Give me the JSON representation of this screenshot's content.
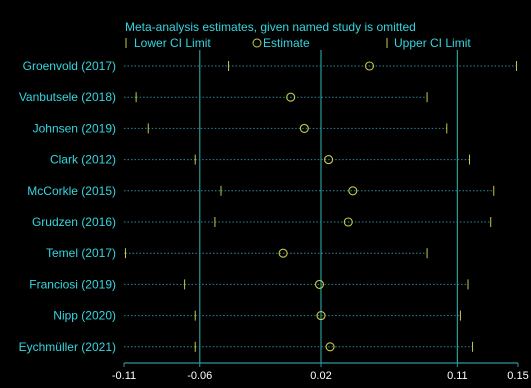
{
  "chart_data": {
    "type": "forest",
    "title": "Meta-analysis estimates, given named study is omitted",
    "legend": {
      "lower": "Lower CI Limit",
      "estimate": "Estimate",
      "upper": "Upper CI Limit",
      "placement": "top"
    },
    "xlim": [
      -0.11,
      0.15
    ],
    "xticks": [
      "-0.11",
      "-0.06",
      "0.02",
      "0.11",
      "0.15"
    ],
    "xtick_values": [
      -0.11,
      -0.06,
      0.02,
      0.11,
      0.15
    ],
    "reference_lines": [
      -0.06,
      0.02,
      0.11
    ],
    "studies": [
      {
        "name": "Groenvold (2017)",
        "lower": -0.041,
        "estimate": 0.052,
        "upper": 0.149
      },
      {
        "name": "Vanbutsele (2018)",
        "lower": -0.102,
        "estimate": 0.0,
        "upper": 0.09
      },
      {
        "name": "Johnsen (2019)",
        "lower": -0.094,
        "estimate": 0.009,
        "upper": 0.103
      },
      {
        "name": "Clark (2012)",
        "lower": -0.063,
        "estimate": 0.025,
        "upper": 0.118
      },
      {
        "name": "McCorkle (2015)",
        "lower": -0.046,
        "estimate": 0.041,
        "upper": 0.134
      },
      {
        "name": "Grudzen (2016)",
        "lower": -0.05,
        "estimate": 0.038,
        "upper": 0.132
      },
      {
        "name": "Temel (2017)",
        "lower": -0.109,
        "estimate": -0.005,
        "upper": 0.09
      },
      {
        "name": "Franciosi (2019)",
        "lower": -0.07,
        "estimate": 0.019,
        "upper": 0.117
      },
      {
        "name": "Nipp (2020)",
        "lower": -0.063,
        "estimate": 0.02,
        "upper": 0.112
      },
      {
        "name": "Eychmüller (2021)",
        "lower": -0.063,
        "estimate": 0.026,
        "upper": 0.12
      }
    ],
    "grid": false
  },
  "colors": {
    "background": "#000000",
    "text": "#33d6e0",
    "axis": "#2a9a9a",
    "ref_line": "#2a9a9a",
    "ci_line": "#2a8a9a",
    "estimate": "#c8c84a",
    "tick_text": "#ffffff"
  }
}
